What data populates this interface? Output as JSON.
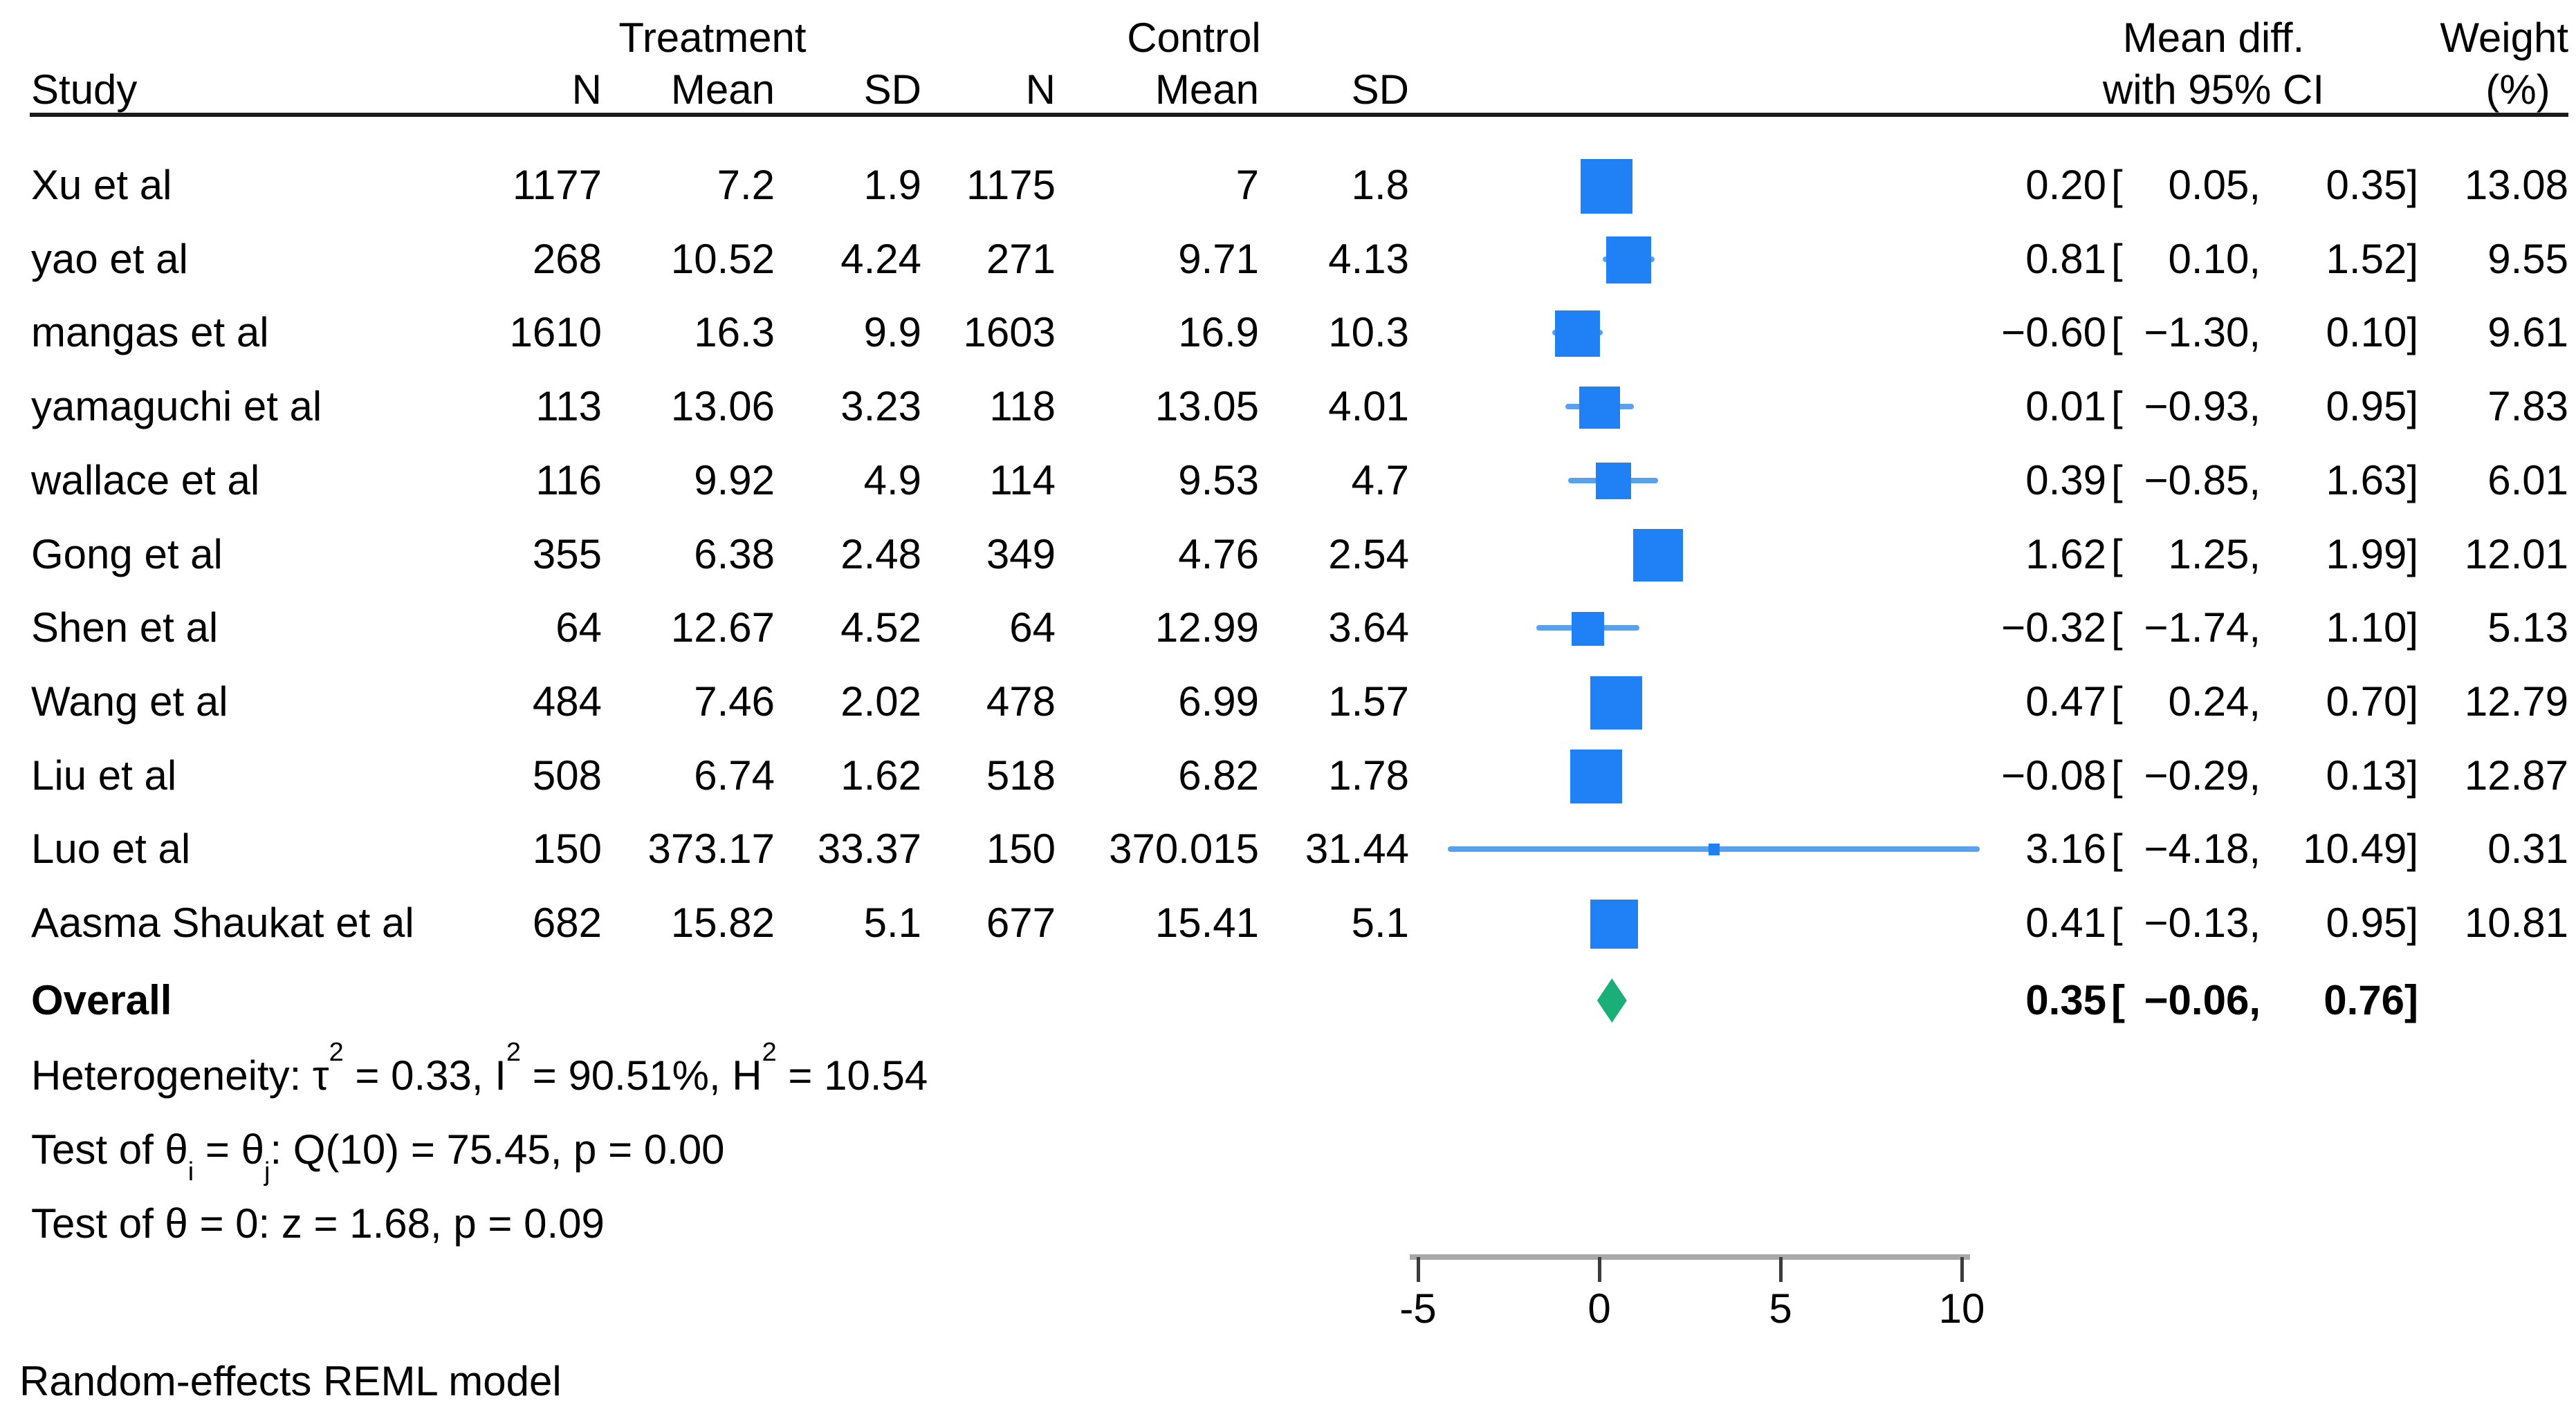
{
  "header": {
    "study_col": "Study",
    "group1": "Treatment",
    "group2": "Control",
    "n_col": "N",
    "mean_col": "Mean",
    "sd_col": "SD",
    "effect_line1": "Mean diff.",
    "effect_line2": "with 95% CI",
    "weight_line1": "Weight",
    "weight_line2": "(%)"
  },
  "chart_data": {
    "type": "scatter",
    "subtype": "forest-plot",
    "title": "",
    "xlabel": "",
    "legend": "none",
    "grid": false,
    "axis": {
      "min": -5,
      "max": 10,
      "ticks": [
        -5,
        0,
        5,
        10
      ],
      "tick_labels": [
        "-5",
        "0",
        "5",
        "10"
      ]
    },
    "colors": {
      "marker": "#1f81f5",
      "ci_line": "#58a1ec",
      "diamond": "#1aae78"
    },
    "studies": [
      {
        "name": "Xu et al",
        "t_n": "1177",
        "t_mean": "7.2",
        "t_sd": "1.9",
        "c_n": "1175",
        "c_mean": "7",
        "c_sd": "1.8",
        "est": 0.2,
        "lo": 0.05,
        "hi": 0.35,
        "est_str": "0.20",
        "lo_str": "0.05",
        "hi_str": "0.35",
        "weight": 13.08,
        "weight_str": "13.08"
      },
      {
        "name": "yao et al",
        "t_n": "268",
        "t_mean": "10.52",
        "t_sd": "4.24",
        "c_n": "271",
        "c_mean": "9.71",
        "c_sd": "4.13",
        "est": 0.81,
        "lo": 0.1,
        "hi": 1.52,
        "est_str": "0.81",
        "lo_str": "0.10",
        "hi_str": "1.52",
        "weight": 9.55,
        "weight_str": "9.55"
      },
      {
        "name": "mangas et al",
        "t_n": "1610",
        "t_mean": "16.3",
        "t_sd": "9.9",
        "c_n": "1603",
        "c_mean": "16.9",
        "c_sd": "10.3",
        "est": -0.6,
        "lo": -1.3,
        "hi": 0.1,
        "est_str": "−0.60",
        "lo_str": "−1.30",
        "hi_str": "0.10",
        "weight": 9.61,
        "weight_str": "9.61"
      },
      {
        "name": "yamaguchi et al",
        "t_n": "113",
        "t_mean": "13.06",
        "t_sd": "3.23",
        "c_n": "118",
        "c_mean": "13.05",
        "c_sd": "4.01",
        "est": 0.01,
        "lo": -0.93,
        "hi": 0.95,
        "est_str": "0.01",
        "lo_str": "−0.93",
        "hi_str": "0.95",
        "weight": 7.83,
        "weight_str": "7.83"
      },
      {
        "name": "wallace et al",
        "t_n": "116",
        "t_mean": "9.92",
        "t_sd": "4.9",
        "c_n": "114",
        "c_mean": "9.53",
        "c_sd": "4.7",
        "est": 0.39,
        "lo": -0.85,
        "hi": 1.63,
        "est_str": "0.39",
        "lo_str": "−0.85",
        "hi_str": "1.63",
        "weight": 6.01,
        "weight_str": "6.01"
      },
      {
        "name": "Gong et al",
        "t_n": "355",
        "t_mean": "6.38",
        "t_sd": "2.48",
        "c_n": "349",
        "c_mean": "4.76",
        "c_sd": "2.54",
        "est": 1.62,
        "lo": 1.25,
        "hi": 1.99,
        "est_str": "1.62",
        "lo_str": "1.25",
        "hi_str": "1.99",
        "weight": 12.01,
        "weight_str": "12.01"
      },
      {
        "name": "Shen et al",
        "t_n": "64",
        "t_mean": "12.67",
        "t_sd": "4.52",
        "c_n": "64",
        "c_mean": "12.99",
        "c_sd": "3.64",
        "est": -0.32,
        "lo": -1.74,
        "hi": 1.1,
        "est_str": "−0.32",
        "lo_str": "−1.74",
        "hi_str": "1.10",
        "weight": 5.13,
        "weight_str": "5.13"
      },
      {
        "name": "Wang et al",
        "t_n": "484",
        "t_mean": "7.46",
        "t_sd": "2.02",
        "c_n": "478",
        "c_mean": "6.99",
        "c_sd": "1.57",
        "est": 0.47,
        "lo": 0.24,
        "hi": 0.7,
        "est_str": "0.47",
        "lo_str": "0.24",
        "hi_str": "0.70",
        "weight": 12.79,
        "weight_str": "12.79"
      },
      {
        "name": "Liu et al",
        "t_n": "508",
        "t_mean": "6.74",
        "t_sd": "1.62",
        "c_n": "518",
        "c_mean": "6.82",
        "c_sd": "1.78",
        "est": -0.08,
        "lo": -0.29,
        "hi": 0.13,
        "est_str": "−0.08",
        "lo_str": "−0.29",
        "hi_str": "0.13",
        "weight": 12.87,
        "weight_str": "12.87"
      },
      {
        "name": "Luo et al",
        "t_n": "150",
        "t_mean": "373.17",
        "t_sd": "33.37",
        "c_n": "150",
        "c_mean": "370.015",
        "c_sd": "31.44",
        "est": 3.16,
        "lo": -4.18,
        "hi": 10.49,
        "est_str": "3.16",
        "lo_str": "−4.18",
        "hi_str": "10.49",
        "weight": 0.31,
        "weight_str": "0.31"
      },
      {
        "name": "Aasma Shaukat et al",
        "t_n": "682",
        "t_mean": "15.82",
        "t_sd": "5.1",
        "c_n": "677",
        "c_mean": "15.41",
        "c_sd": "5.1",
        "est": 0.41,
        "lo": -0.13,
        "hi": 0.95,
        "est_str": "0.41",
        "lo_str": "−0.13",
        "hi_str": "0.95",
        "weight": 10.81,
        "weight_str": "10.81"
      }
    ],
    "overall": {
      "label": "Overall",
      "est": 0.35,
      "lo": -0.06,
      "hi": 0.76,
      "est_str": "0.35",
      "lo_str": "−0.06",
      "hi_str": "0.76"
    }
  },
  "footnotes": {
    "heterogeneity": {
      "prefix": "Heterogeneity: τ",
      "sup1": "2",
      "mid1": " = 0.33, I",
      "sup2": "2",
      "mid2": " = 90.51%, H",
      "sup3": "2",
      "end": " = 10.54"
    },
    "test_group": {
      "prefix": "Test of θ",
      "sub_i": "i",
      "mid": " = θ",
      "sub_j": "j",
      "end": ": Q(10) = 75.45, p = 0.00"
    },
    "test_zero": "Test of θ = 0: z = 1.68, p = 0.09",
    "model": "Random-effects REML model"
  }
}
